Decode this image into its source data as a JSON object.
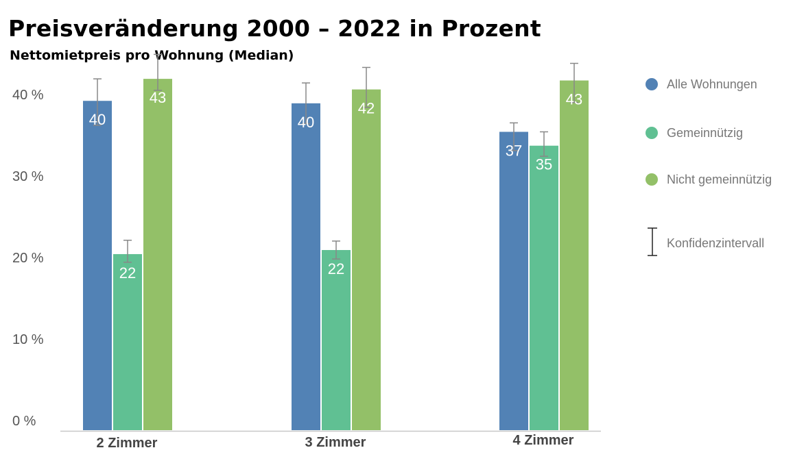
{
  "chart_data": {
    "type": "bar",
    "title": "Preisveränderung 2000 – 2022 in Prozent",
    "subtitle": "Nettomietpreis pro Wohnung (Median)",
    "xlabel": "",
    "ylabel": "",
    "categories": [
      "2 Zimmer",
      "3 Zimmer",
      "4 Zimmer"
    ],
    "ylim": [
      0,
      44
    ],
    "yticks": [
      0,
      10,
      20,
      30,
      40
    ],
    "ytick_labels": [
      "0 %",
      "10 %",
      "20 %",
      "30 %",
      "40 %"
    ],
    "series": [
      {
        "name": "Alle Wohnungen",
        "color": "#5282b5",
        "values": [
          40.4,
          40.1,
          36.6
        ],
        "labels": [
          "40",
          "40",
          "37"
        ],
        "ci": [
          [
            37.4,
            43.1
          ],
          [
            37.6,
            42.6
          ],
          [
            34.3,
            37.7
          ]
        ]
      },
      {
        "name": "Gemeinnützig",
        "color": "#60c093",
        "values": [
          21.6,
          22.1,
          34.9
        ],
        "labels": [
          "22",
          "22",
          "35"
        ],
        "ci": [
          [
            20.6,
            23.3
          ],
          [
            21.0,
            23.2
          ],
          [
            33.6,
            36.6
          ]
        ]
      },
      {
        "name": "Nicht gemeinnützig",
        "color": "#93c068",
        "values": [
          43.1,
          41.8,
          42.9
        ],
        "labels": [
          "43",
          "42",
          "43"
        ],
        "ci": [
          [
            41.7,
            46.1
          ],
          [
            39.6,
            44.5
          ],
          [
            40.2,
            45.0
          ]
        ]
      }
    ],
    "legend": {
      "placement": "right",
      "ci_label": "Konfidenzintervall"
    },
    "grid": false
  }
}
